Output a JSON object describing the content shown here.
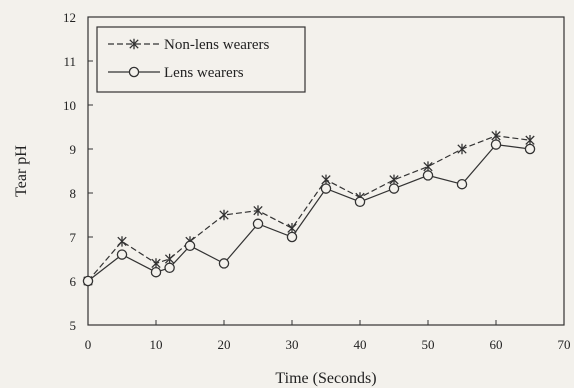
{
  "chart_data": {
    "type": "line",
    "xlabel": "Time (Seconds)",
    "ylabel": "Tear pH",
    "xlim": [
      0,
      70
    ],
    "ylim": [
      5,
      12
    ],
    "xticks": [
      "0",
      "10",
      "20",
      "30",
      "40",
      "50",
      "60",
      "70"
    ],
    "yticks": [
      "5",
      "6",
      "7",
      "8",
      "9",
      "10",
      "11",
      "12"
    ],
    "legend_position": "top-left",
    "grid": false,
    "series": [
      {
        "name": "Non-lens wearers",
        "marker": "asterisk",
        "line_style": "dashed",
        "points": [
          [
            0,
            6.0
          ],
          [
            5,
            6.9
          ],
          [
            10,
            6.4
          ],
          [
            12,
            6.5
          ],
          [
            15,
            6.9
          ],
          [
            20,
            7.5
          ],
          [
            25,
            7.6
          ],
          [
            30,
            7.2
          ],
          [
            35,
            8.3
          ],
          [
            40,
            7.9
          ],
          [
            45,
            8.3
          ],
          [
            50,
            8.6
          ],
          [
            55,
            9.0
          ],
          [
            60,
            9.3
          ],
          [
            65,
            9.2
          ]
        ]
      },
      {
        "name": "Lens wearers",
        "marker": "circle",
        "line_style": "solid",
        "points": [
          [
            0,
            6.0
          ],
          [
            5,
            6.6
          ],
          [
            10,
            6.2
          ],
          [
            12,
            6.3
          ],
          [
            15,
            6.8
          ],
          [
            20,
            6.4
          ],
          [
            25,
            7.3
          ],
          [
            30,
            7.0
          ],
          [
            35,
            8.1
          ],
          [
            40,
            7.8
          ],
          [
            45,
            8.1
          ],
          [
            50,
            8.4
          ],
          [
            55,
            8.2
          ],
          [
            60,
            9.1
          ],
          [
            65,
            9.0
          ]
        ]
      }
    ]
  }
}
